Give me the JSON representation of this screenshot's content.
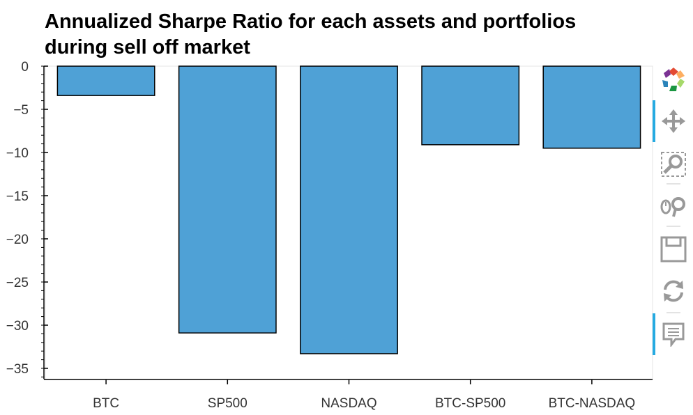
{
  "chart_data": {
    "type": "bar",
    "title": "Annualized Sharpe Ratio for each assets and portfolios\n during sell off market",
    "categories": [
      "BTC",
      "SP500",
      "NASDAQ",
      "BTC-SP500",
      "BTC-NASDAQ"
    ],
    "values": [
      -3.4,
      -30.9,
      -33.3,
      -9.1,
      -9.5
    ],
    "xlabel": "",
    "ylabel": "",
    "ylim": [
      -36.2,
      0
    ],
    "yticks": [
      0,
      -5,
      -10,
      -15,
      -20,
      -25,
      -30,
      -35
    ],
    "ytick_labels": [
      "0",
      "−5",
      "−10",
      "−15",
      "−20",
      "−25",
      "−30",
      "−35"
    ],
    "bar_color": "#4fa1d6",
    "bar_edge_color": "#000000",
    "grid": false,
    "legend": "none"
  },
  "toolbar": {
    "tools": [
      "bokeh-logo-icon",
      "pan-icon",
      "box-zoom-icon",
      "wheel-zoom-icon",
      "save-icon",
      "reset-icon",
      "hover-icon"
    ]
  }
}
